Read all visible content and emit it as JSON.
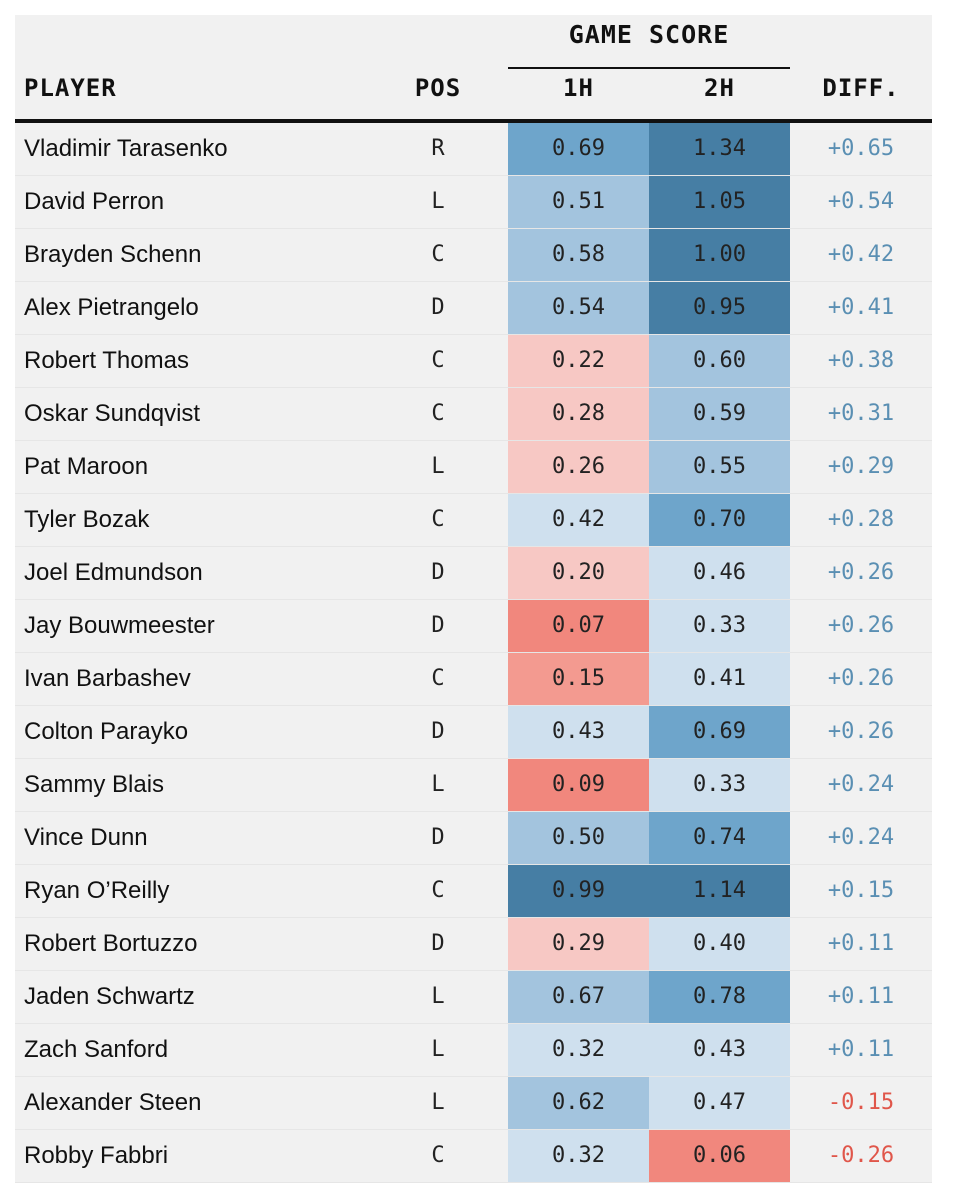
{
  "header": {
    "group_label": "GAME SCORE",
    "player": "PLAYER",
    "pos": "POS",
    "first_half": "1H",
    "second_half": "2H",
    "diff": "DIFF."
  },
  "colors": {
    "red_strong": "#f1877d",
    "red_mid": "#f39a90",
    "red_light": "#f7c8c4",
    "blue_pale": "#cfe0ee",
    "blue_light": "#a3c4de",
    "blue_mid": "#6ea5cb",
    "blue_dark": "#467ea4",
    "diff_positive": "#5a8fb3",
    "diff_negative": "#e0564a"
  },
  "rows": [
    {
      "player": "Vladimir Tarasenko",
      "pos": "R",
      "h1": "0.69",
      "h2": "1.34",
      "diff": "+0.65"
    },
    {
      "player": "David Perron",
      "pos": "L",
      "h1": "0.51",
      "h2": "1.05",
      "diff": "+0.54"
    },
    {
      "player": "Brayden Schenn",
      "pos": "C",
      "h1": "0.58",
      "h2": "1.00",
      "diff": "+0.42"
    },
    {
      "player": "Alex Pietrangelo",
      "pos": "D",
      "h1": "0.54",
      "h2": "0.95",
      "diff": "+0.41"
    },
    {
      "player": "Robert Thomas",
      "pos": "C",
      "h1": "0.22",
      "h2": "0.60",
      "diff": "+0.38"
    },
    {
      "player": "Oskar Sundqvist",
      "pos": "C",
      "h1": "0.28",
      "h2": "0.59",
      "diff": "+0.31"
    },
    {
      "player": "Pat Maroon",
      "pos": "L",
      "h1": "0.26",
      "h2": "0.55",
      "diff": "+0.29"
    },
    {
      "player": "Tyler Bozak",
      "pos": "C",
      "h1": "0.42",
      "h2": "0.70",
      "diff": "+0.28"
    },
    {
      "player": "Joel Edmundson",
      "pos": "D",
      "h1": "0.20",
      "h2": "0.46",
      "diff": "+0.26"
    },
    {
      "player": "Jay Bouwmeester",
      "pos": "D",
      "h1": "0.07",
      "h2": "0.33",
      "diff": "+0.26"
    },
    {
      "player": "Ivan Barbashev",
      "pos": "C",
      "h1": "0.15",
      "h2": "0.41",
      "diff": "+0.26"
    },
    {
      "player": "Colton Parayko",
      "pos": "D",
      "h1": "0.43",
      "h2": "0.69",
      "diff": "+0.26"
    },
    {
      "player": "Sammy Blais",
      "pos": "L",
      "h1": "0.09",
      "h2": "0.33",
      "diff": "+0.24"
    },
    {
      "player": "Vince Dunn",
      "pos": "D",
      "h1": "0.50",
      "h2": "0.74",
      "diff": "+0.24"
    },
    {
      "player": "Ryan O’Reilly",
      "pos": "C",
      "h1": "0.99",
      "h2": "1.14",
      "diff": "+0.15"
    },
    {
      "player": "Robert Bortuzzo",
      "pos": "D",
      "h1": "0.29",
      "h2": "0.40",
      "diff": "+0.11"
    },
    {
      "player": "Jaden Schwartz",
      "pos": "L",
      "h1": "0.67",
      "h2": "0.78",
      "diff": "+0.11"
    },
    {
      "player": "Zach Sanford",
      "pos": "L",
      "h1": "0.32",
      "h2": "0.43",
      "diff": "+0.11"
    },
    {
      "player": "Alexander Steen",
      "pos": "L",
      "h1": "0.62",
      "h2": "0.47",
      "diff": "-0.15"
    },
    {
      "player": "Robby Fabbri",
      "pos": "C",
      "h1": "0.32",
      "h2": "0.06",
      "diff": "-0.26"
    }
  ]
}
